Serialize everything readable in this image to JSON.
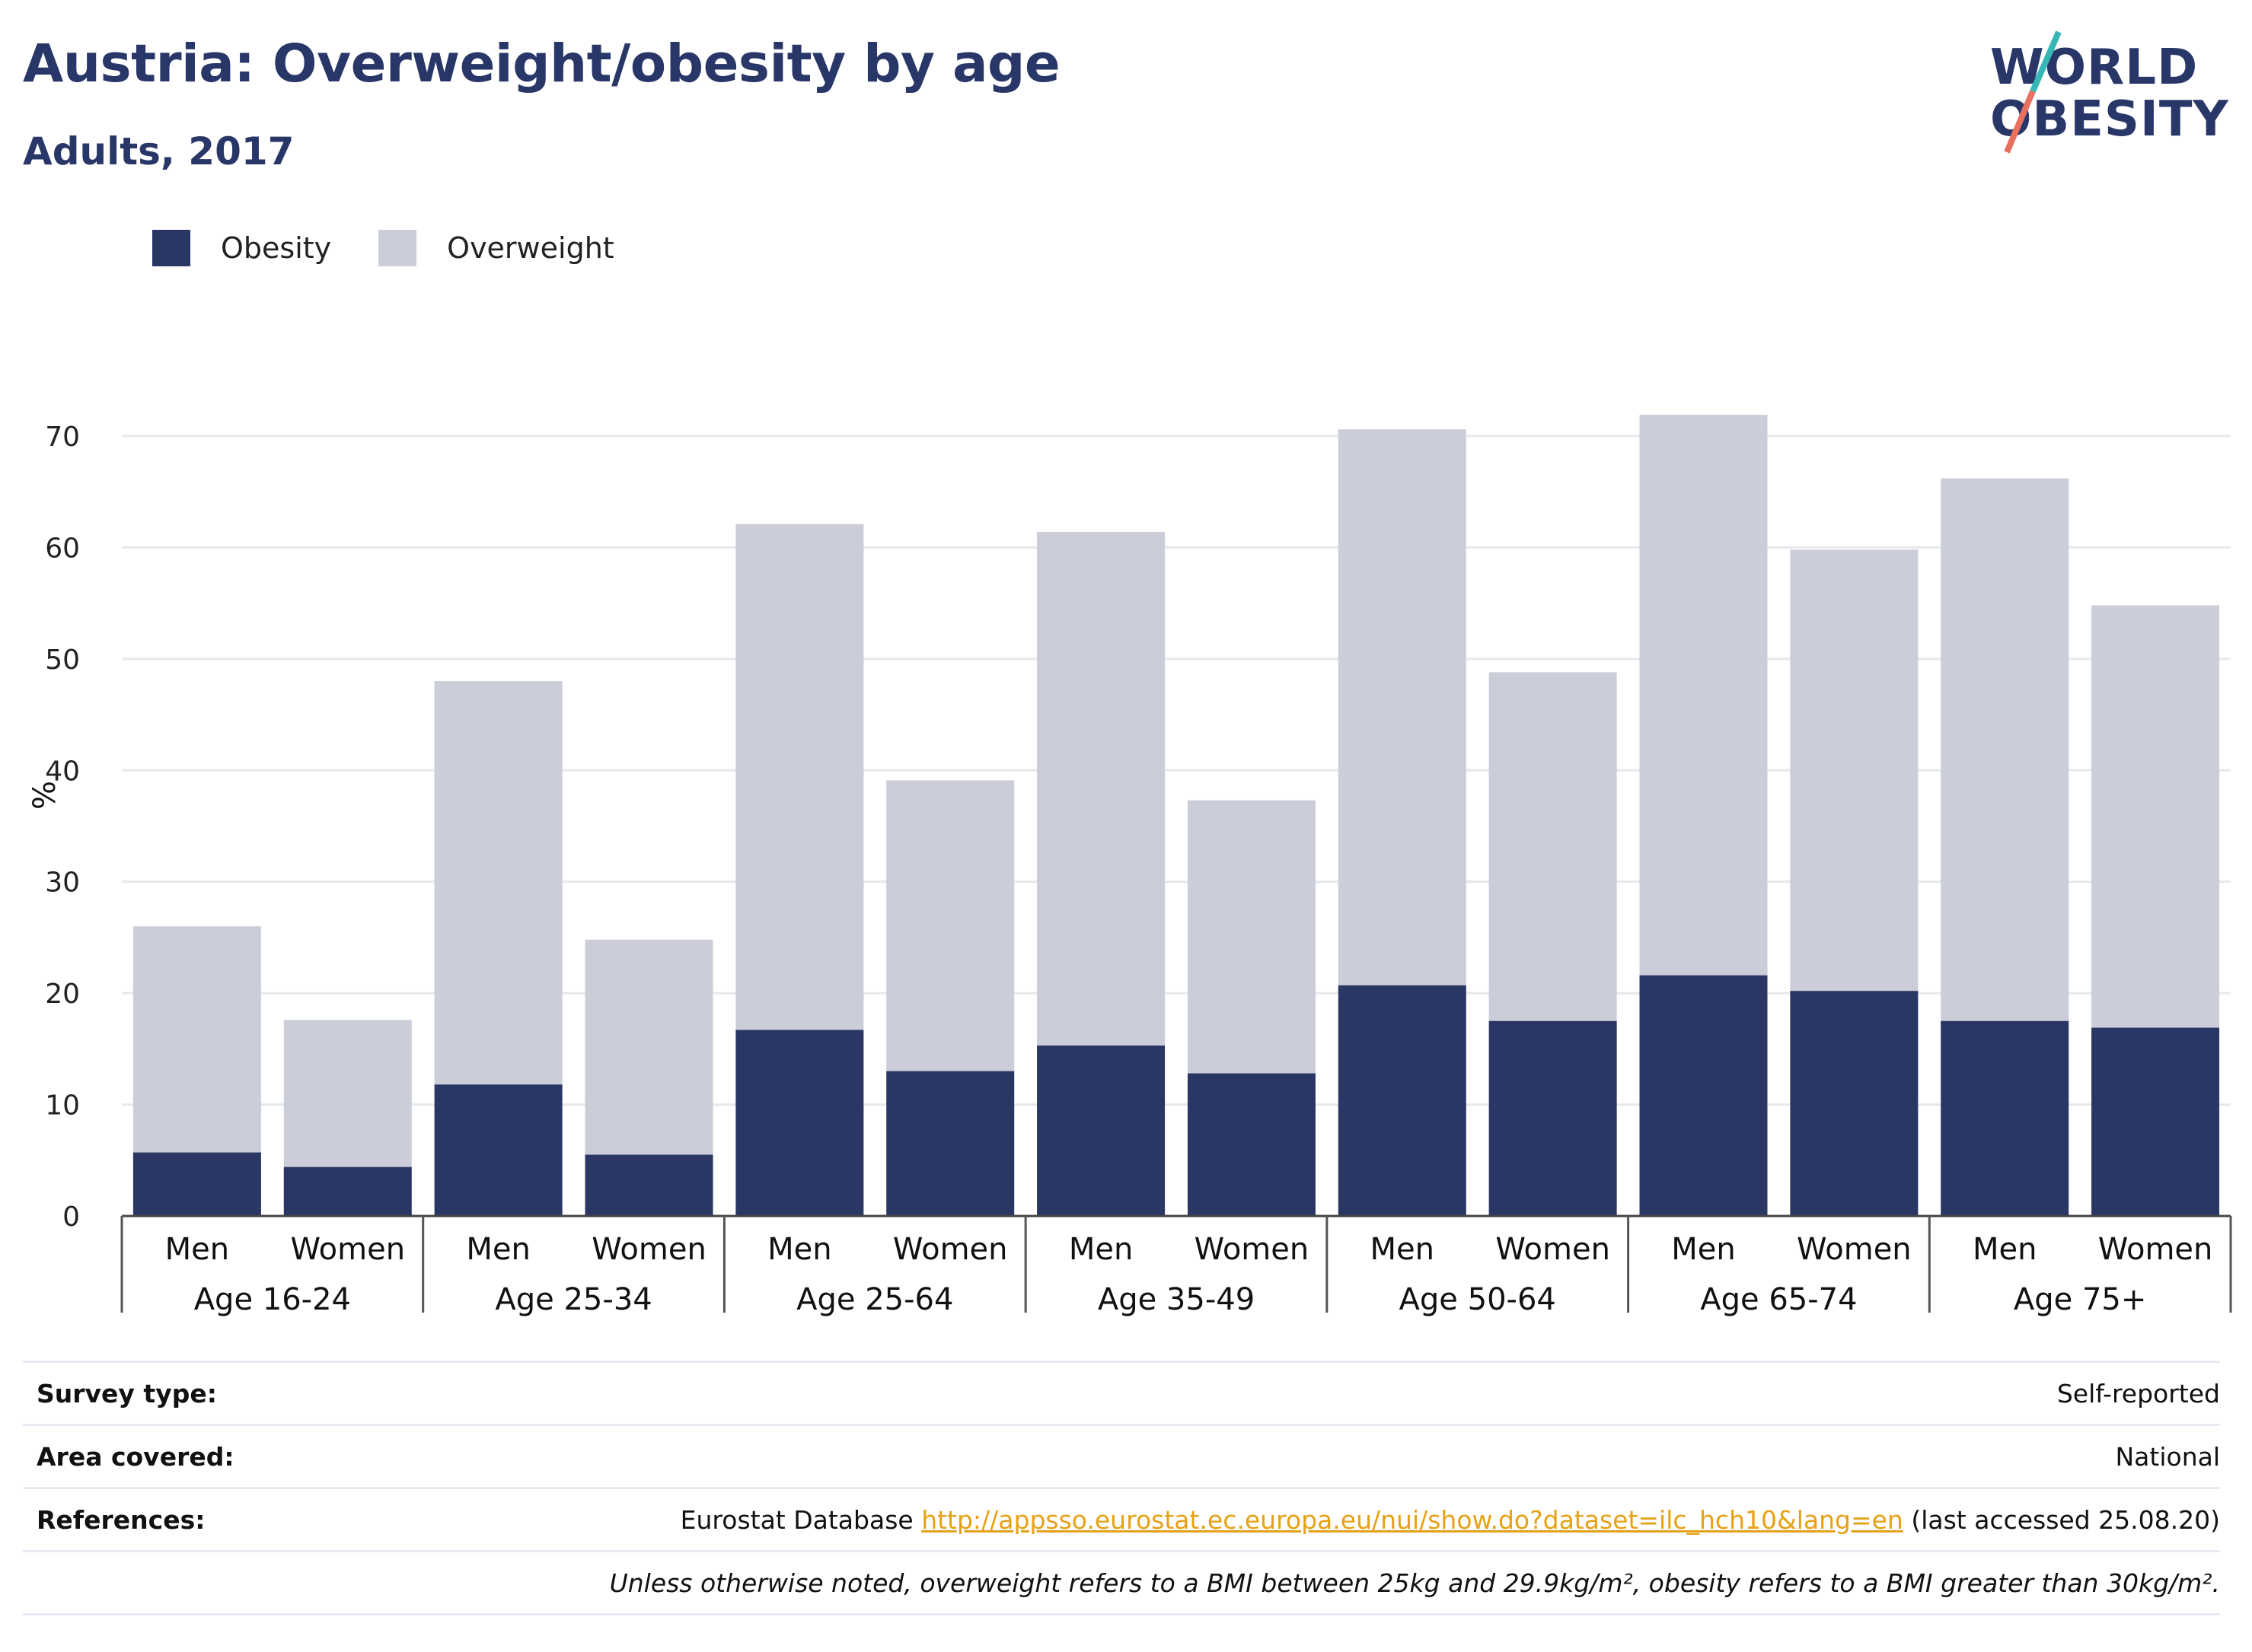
{
  "header": {
    "title": "Austria: Overweight/obesity by age",
    "subtitle": "Adults, 2017"
  },
  "logo": {
    "line1": "WORLD",
    "line2": "OBESITY",
    "colors": {
      "text": "#283668",
      "slash_top": "#34b7b5",
      "slash_bottom": "#e8705e"
    }
  },
  "legend": [
    {
      "label": "Obesity",
      "color": "#2a3663"
    },
    {
      "label": "Overweight",
      "color": "#cbcdd9"
    }
  ],
  "chart_data": {
    "type": "bar",
    "stacked": true,
    "ylabel": "%",
    "ylim": [
      0,
      70
    ],
    "yticks": [
      0,
      10,
      20,
      30,
      40,
      50,
      60,
      70
    ],
    "grid": true,
    "legend_position": "top-left",
    "groups": [
      "Age 16-24",
      "Age 25-34",
      "Age 25-64",
      "Age 35-49",
      "Age 50-64",
      "Age 65-74",
      "Age 75+"
    ],
    "subcategories": [
      "Men",
      "Women"
    ],
    "categories": [
      "Men",
      "Women",
      "Men",
      "Women",
      "Men",
      "Women",
      "Men",
      "Women",
      "Men",
      "Women",
      "Men",
      "Women",
      "Men",
      "Women"
    ],
    "series": [
      {
        "name": "Obesity",
        "color": "#2a3663",
        "values": [
          5.7,
          4.4,
          11.8,
          5.5,
          16.7,
          13.0,
          15.3,
          12.8,
          20.7,
          17.5,
          21.6,
          20.2,
          17.5,
          16.9
        ]
      },
      {
        "name": "Overweight",
        "color": "#cbcdd9",
        "values": [
          20.3,
          13.2,
          36.2,
          19.3,
          45.4,
          26.1,
          46.1,
          24.5,
          49.9,
          31.3,
          50.3,
          39.6,
          48.7,
          37.9
        ]
      }
    ]
  },
  "info": {
    "survey_type_key": "Survey type:",
    "survey_type_val": "Self-reported",
    "area_key": "Area covered:",
    "area_val": "National",
    "references_key": "References:",
    "references_prefix": "Eurostat Database ",
    "references_link": "http://appsso.eurostat.ec.europa.eu/nui/show.do?dataset=ilc_hch10&lang=en",
    "references_suffix": " (last accessed 25.08.20)",
    "note": "Unless otherwise noted, overweight refers to a BMI between 25kg and 29.9kg/m², obesity refers to a BMI greater than 30kg/m²."
  }
}
